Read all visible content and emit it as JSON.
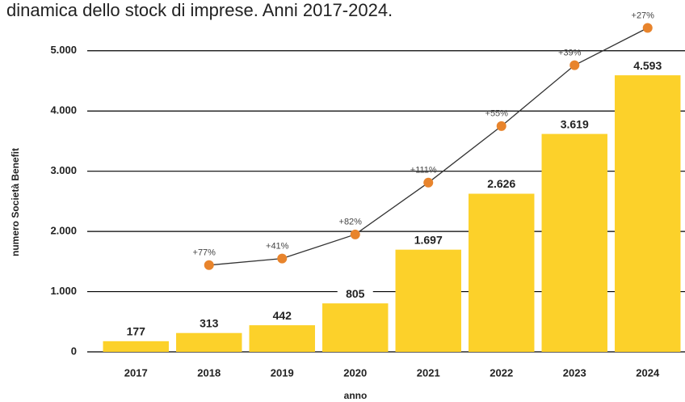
{
  "chart_data": {
    "type": "bar",
    "title": "dinamica dello stock di imprese. Anni 2017-2024.",
    "xlabel": "anno",
    "ylabel": "numero Società Benefit",
    "categories": [
      "2017",
      "2018",
      "2019",
      "2020",
      "2021",
      "2022",
      "2023",
      "2024"
    ],
    "values": [
      177,
      313,
      442,
      805,
      1697,
      2626,
      3619,
      4593
    ],
    "value_labels": [
      "177",
      "313",
      "442",
      "805",
      "1.697",
      "2.626",
      "3.619",
      "4.593"
    ],
    "color": "#fcd12a",
    "line": {
      "color": "#333333",
      "marker_color": "#e8842c",
      "values": [
        null,
        1440,
        1550,
        1950,
        2810,
        3750,
        4760,
        5380
      ],
      "annotations": [
        null,
        "+77%",
        "+41%",
        "+82%",
        "+111%",
        "+55%",
        "+39%",
        "+27%"
      ]
    },
    "ylim": [
      0,
      5400
    ],
    "yticks": [
      0,
      {
        "value": 1000,
        "label": "1.000"
      },
      {
        "value": 2000,
        "label": "2.000"
      },
      {
        "value": 3000,
        "label": "3.000"
      },
      {
        "value": 4000,
        "label": "4.000"
      },
      {
        "value": 5000,
        "label": "5.000"
      }
    ],
    "grid": true
  }
}
